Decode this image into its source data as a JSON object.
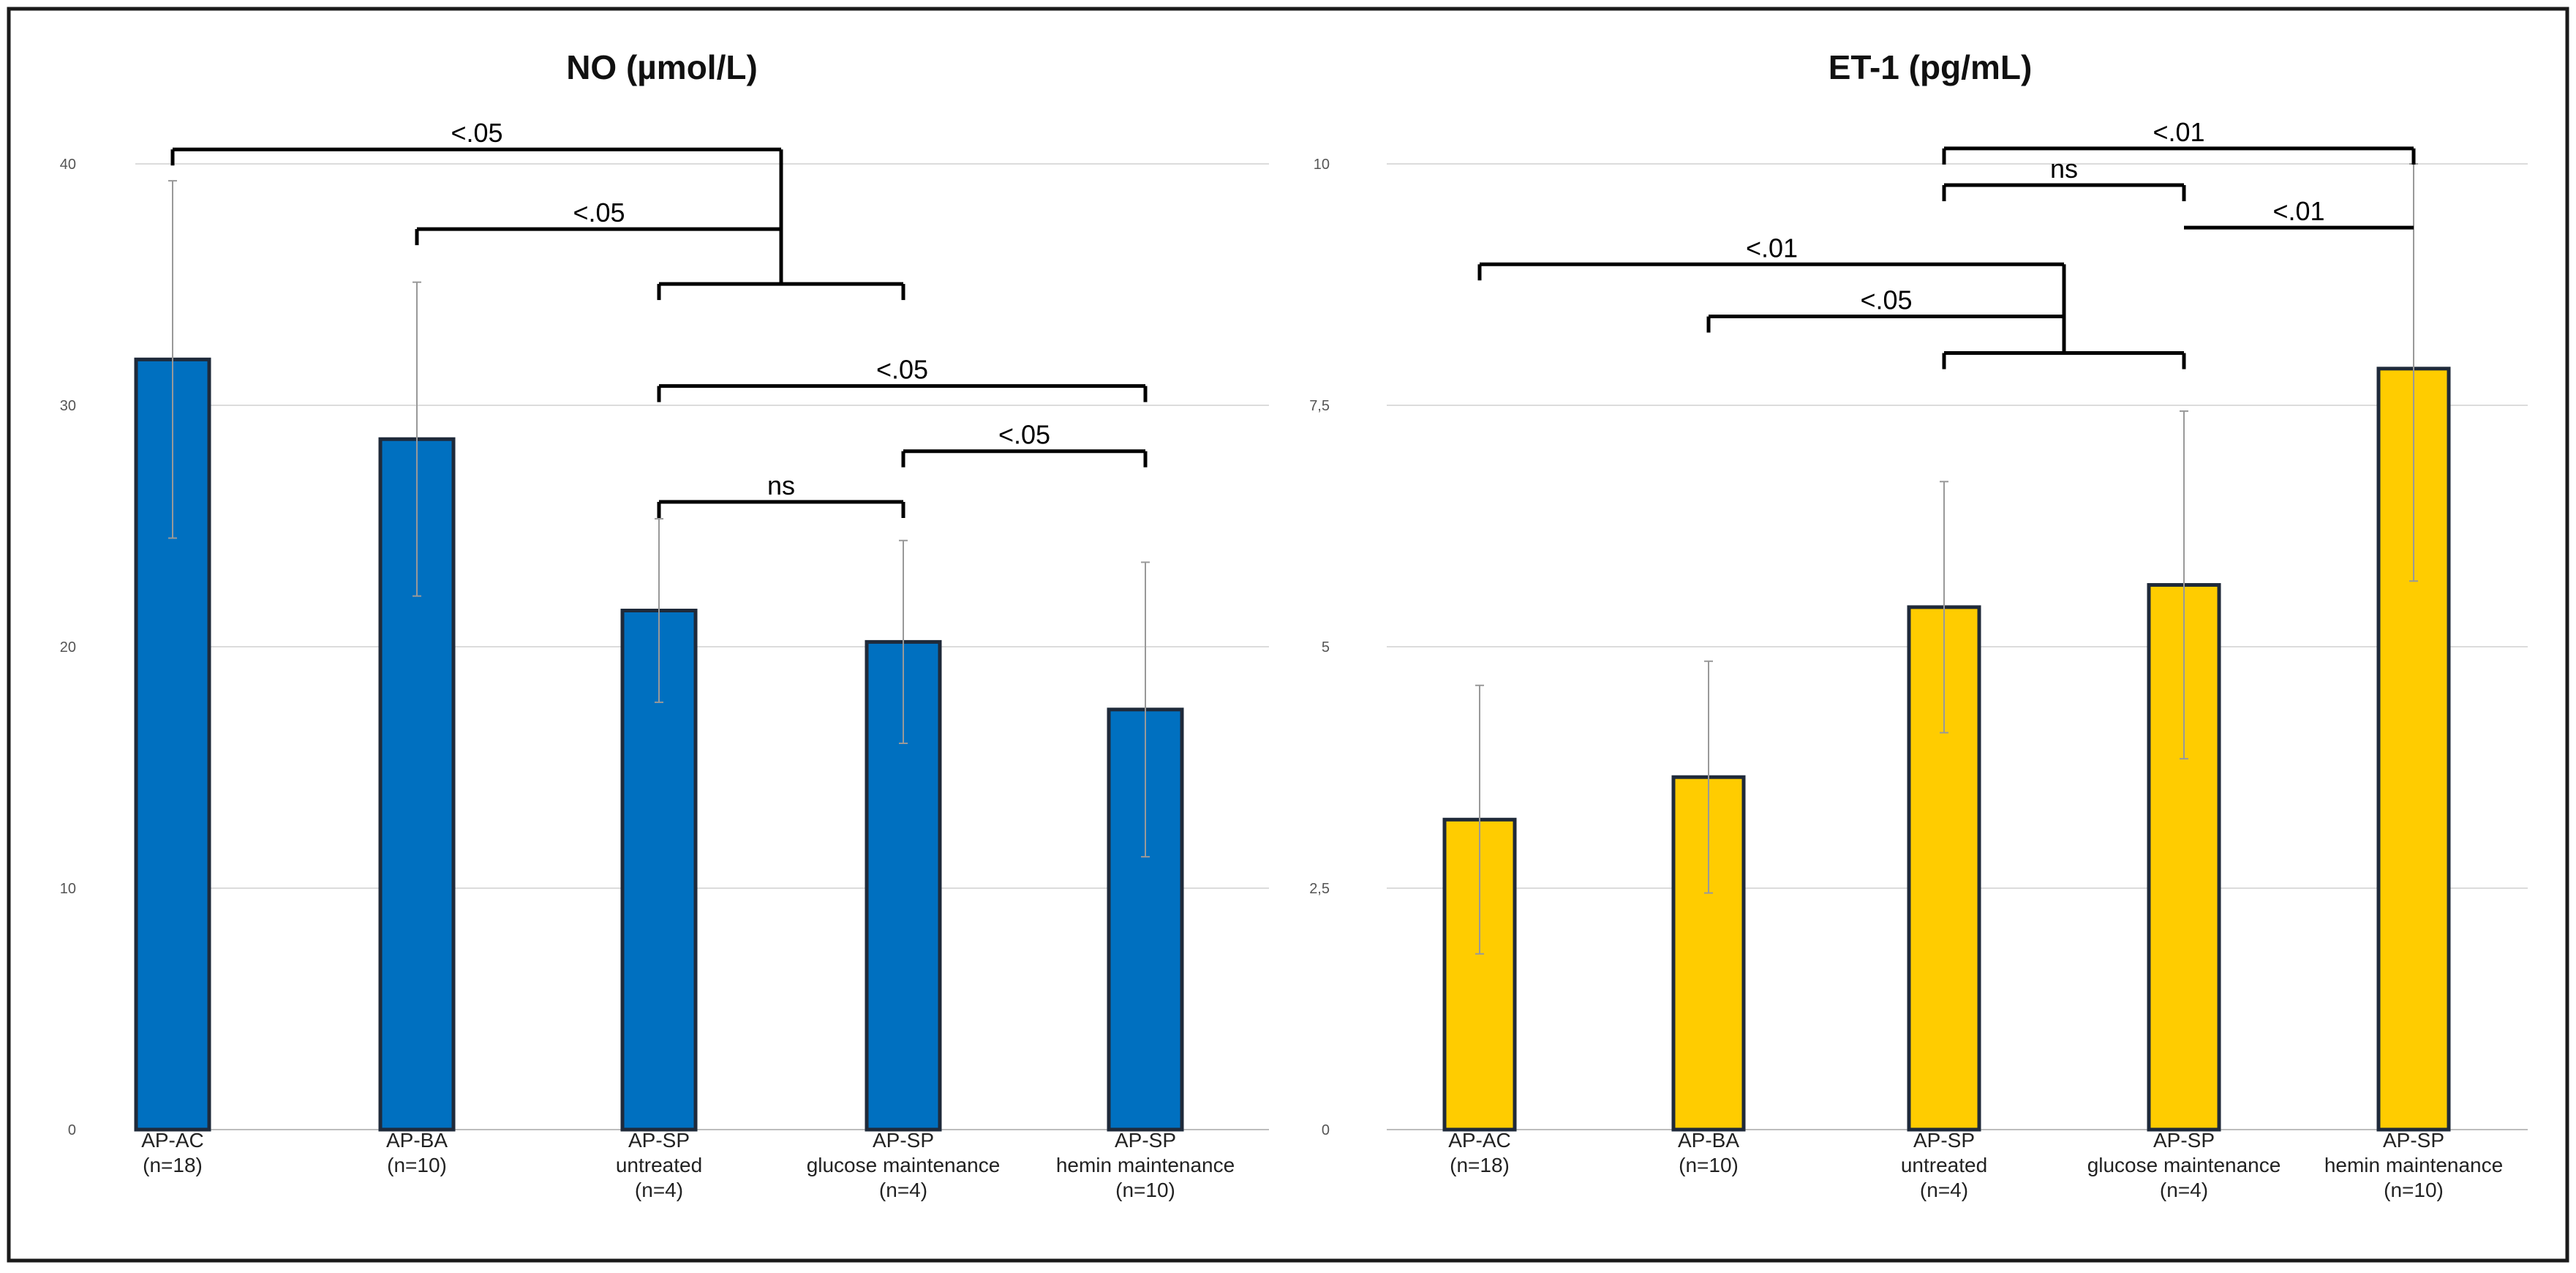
{
  "chart_data": [
    {
      "type": "bar",
      "title": "NO (µmol/L)",
      "xlabel": "",
      "ylabel": "",
      "ylim": [
        0,
        40
      ],
      "yticks": [
        0,
        10,
        20,
        30,
        40
      ],
      "ytick_labels": [
        "0",
        "10",
        "20",
        "30",
        "40"
      ],
      "grid": true,
      "bar_color": "#0070C0",
      "bar_edge_color": "#1f2a3a",
      "categories": [
        [
          "AP-AC",
          "(n=18)"
        ],
        [
          "AP-BA",
          "(n=10)"
        ],
        [
          "AP-SP",
          "untreated",
          "(n=4)"
        ],
        [
          "AP-SP",
          "glucose maintenance",
          "(n=4)"
        ],
        [
          "AP-SP",
          "hemin maintenance",
          "(n=10)"
        ]
      ],
      "values": [
        31.9,
        28.6,
        21.5,
        20.2,
        17.4
      ],
      "errors": [
        7.4,
        6.5,
        3.8,
        4.2,
        6.1
      ],
      "significance": [
        {
          "type": "group",
          "from": [
            0
          ],
          "to": [
            2,
            3
          ],
          "label": "<.05",
          "y": 40.6
        },
        {
          "type": "group",
          "from": [
            1
          ],
          "to": [
            2,
            3
          ],
          "label": "<.05",
          "y": 37.3
        },
        {
          "type": "simple",
          "from": 2,
          "to": 4,
          "label": "<.05",
          "y": 30.8
        },
        {
          "type": "simple",
          "from": 3,
          "to": 4,
          "label": "<.05",
          "y": 28.1
        },
        {
          "type": "simple",
          "from": 2,
          "to": 3,
          "label": "ns",
          "y": 26.0
        }
      ]
    },
    {
      "type": "bar",
      "title": "ET-1 (pg/mL)",
      "xlabel": "",
      "ylabel": "",
      "ylim": [
        0,
        10
      ],
      "yticks": [
        0,
        2.5,
        5,
        7.5,
        10
      ],
      "ytick_labels": [
        "0",
        "2,5",
        "5",
        "7,5",
        "10"
      ],
      "grid": true,
      "bar_color": "#FFCC00",
      "bar_edge_color": "#1f2a3a",
      "categories": [
        [
          "AP-AC",
          "(n=18)"
        ],
        [
          "AP-BA",
          "(n=10)"
        ],
        [
          "AP-SP",
          "untreated",
          "(n=4)"
        ],
        [
          "AP-SP",
          "glucose maintenance",
          "(n=4)"
        ],
        [
          "AP-SP",
          "hemin maintenance",
          "(n=10)"
        ]
      ],
      "values": [
        3.21,
        3.65,
        5.41,
        5.64,
        7.88
      ],
      "errors": [
        1.39,
        1.2,
        1.3,
        1.8,
        2.2
      ],
      "significance": [
        {
          "type": "simple",
          "from": 2,
          "to": 4,
          "label": "<.01",
          "y": 10.16
        },
        {
          "type": "simple",
          "from": 2,
          "to": 3,
          "label": "ns",
          "y": 9.78
        },
        {
          "type": "simple",
          "from": 3,
          "to": 4,
          "label": "<.01",
          "y": 9.34,
          "no_ticks": true
        },
        {
          "type": "group",
          "from": [
            0
          ],
          "to": [
            2,
            3
          ],
          "label": "<.01",
          "y": 8.96
        },
        {
          "type": "group",
          "from": [
            1
          ],
          "to": [
            2,
            3
          ],
          "label": "<.05",
          "y": 8.42
        }
      ]
    }
  ]
}
